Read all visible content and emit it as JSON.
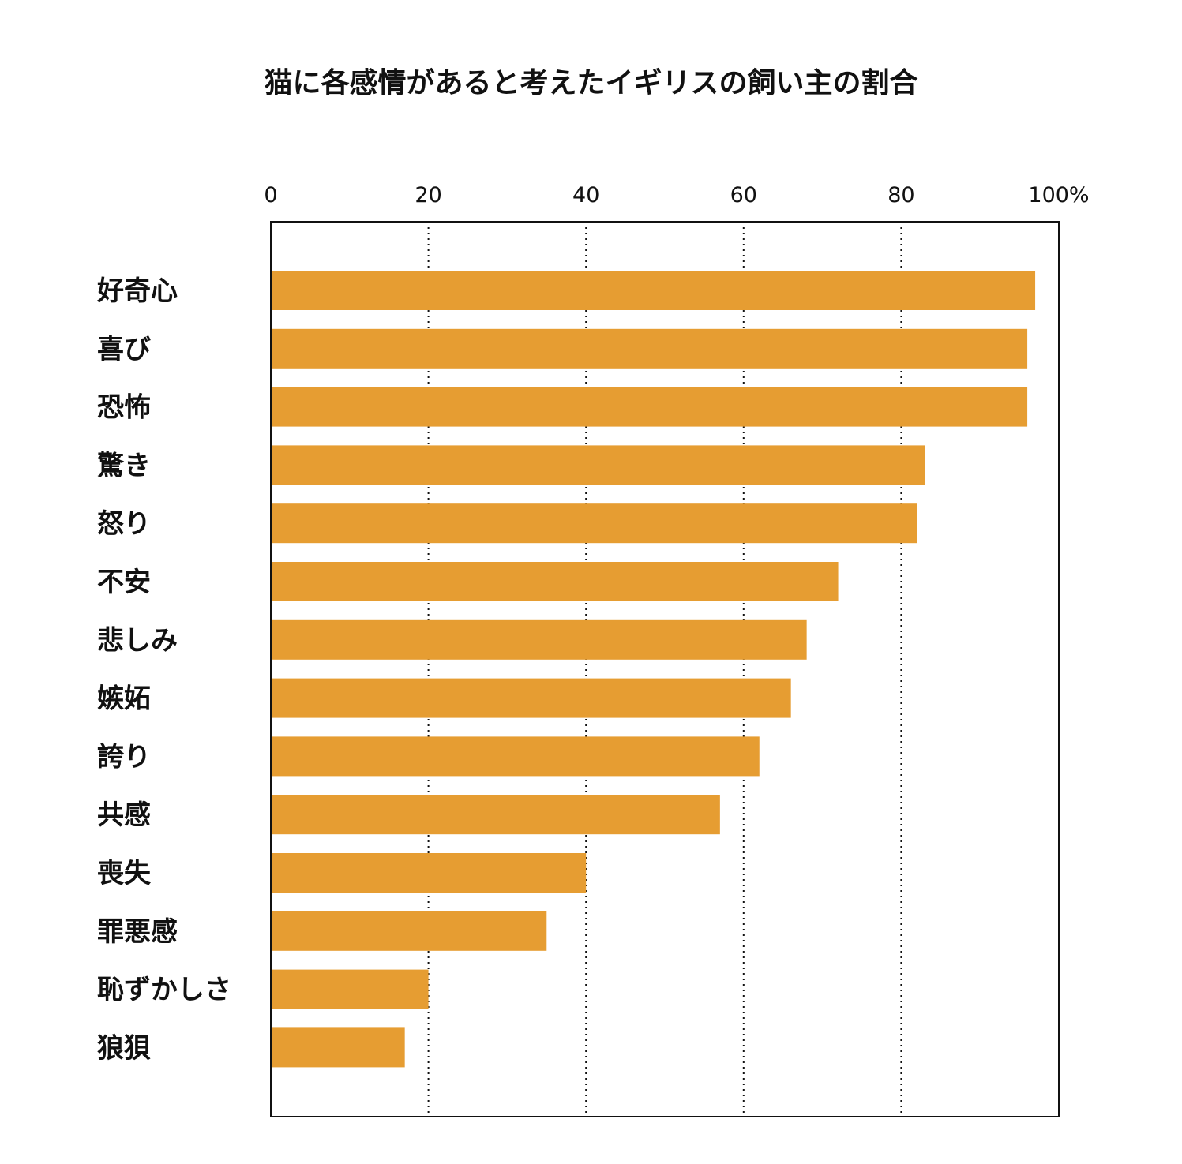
{
  "chart_data": {
    "type": "bar",
    "orientation": "horizontal",
    "title": "猫に各感情があると考えたイギリスの飼い主の割合",
    "xlabel": "",
    "ylabel": "",
    "xlim": [
      0,
      100
    ],
    "x_ticks": [
      0,
      20,
      40,
      60,
      80,
      100
    ],
    "x_tick_labels": [
      "0",
      "20",
      "40",
      "60",
      "80",
      "100%"
    ],
    "grid": "vertical dotted lines at 20, 40, 60, 80",
    "categories": [
      "好奇心",
      "喜び",
      "恐怖",
      "驚き",
      "怒り",
      "不安",
      "悲しみ",
      "嫉妬",
      "誇り",
      "共感",
      "喪失",
      "罪悪感",
      "恥ずかしさ",
      "狼狽"
    ],
    "values": [
      97,
      96,
      96,
      83,
      82,
      72,
      68,
      66,
      62,
      57,
      40,
      35,
      20,
      17
    ],
    "bar_color": "#E69D32"
  }
}
